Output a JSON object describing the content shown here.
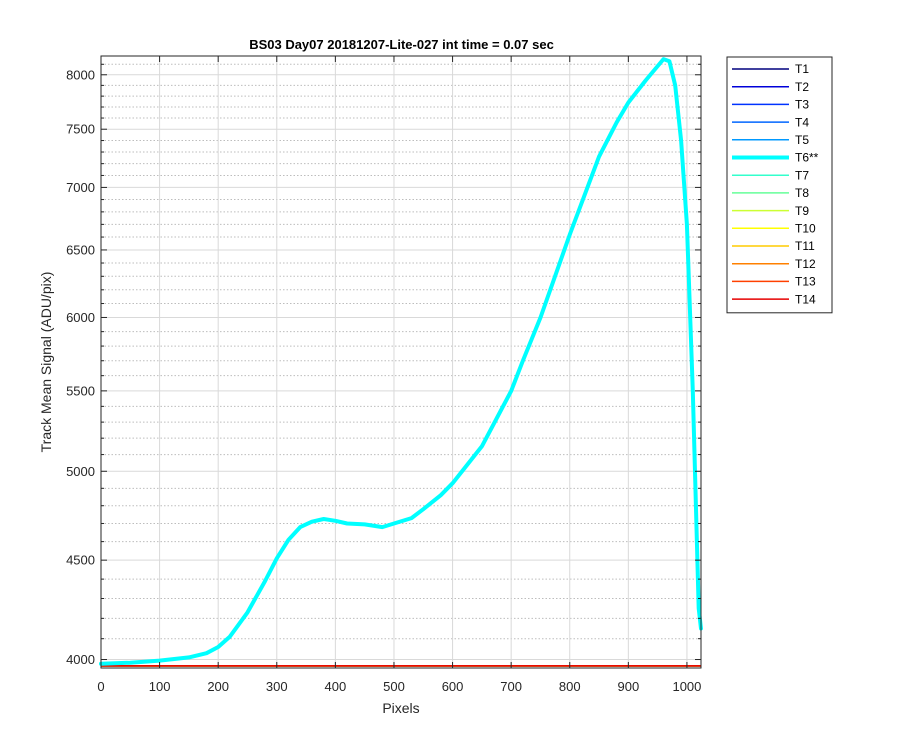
{
  "chart_data": {
    "type": "line",
    "title": "BS03 Day07 20181207-Lite-027 int time = 0.07 sec",
    "xlabel": "Pixels",
    "ylabel": "Track Mean Signal (ADU/pix)",
    "xlim": [
      0,
      1024
    ],
    "ylim": [
      3960,
      8180
    ],
    "y_scale": "log",
    "x_ticks": [
      0,
      100,
      200,
      300,
      400,
      500,
      600,
      700,
      800,
      900,
      1000
    ],
    "y_ticks": [
      4000,
      4500,
      5000,
      5500,
      6000,
      6500,
      7000,
      7500,
      8000
    ],
    "y_minor_ticks": [
      4100,
      4200,
      4300,
      4400,
      4600,
      4700,
      4800,
      4900,
      5100,
      5200,
      5300,
      5400,
      5600,
      5700,
      5800,
      5900,
      6100,
      6200,
      6300,
      6400,
      6600,
      6700,
      6800,
      6900,
      7100,
      7200,
      7300,
      7400,
      7600,
      7700,
      7800,
      7900,
      8100
    ],
    "grid": true,
    "legend_position": "outside-right",
    "series": [
      {
        "name": "T1",
        "color": "#00007f",
        "values": "flat"
      },
      {
        "name": "T2",
        "color": "#0000d9",
        "values": "flat"
      },
      {
        "name": "T3",
        "color": "#0033ff",
        "values": "flat"
      },
      {
        "name": "T4",
        "color": "#0066ff",
        "values": "flat"
      },
      {
        "name": "T5",
        "color": "#0099ff",
        "values": "flat"
      },
      {
        "name": "T6**",
        "color": "#00ffff",
        "highlight": true
      },
      {
        "name": "T7",
        "color": "#33ffcc",
        "values": "flat"
      },
      {
        "name": "T8",
        "color": "#66ff99",
        "values": "flat"
      },
      {
        "name": "T9",
        "color": "#ccff33",
        "values": "flat"
      },
      {
        "name": "T10",
        "color": "#ffff00",
        "values": "flat"
      },
      {
        "name": "T11",
        "color": "#ffcc00",
        "values": "flat"
      },
      {
        "name": "T12",
        "color": "#ff8000",
        "values": "flat"
      },
      {
        "name": "T13",
        "color": "#ff4000",
        "values": "flat"
      },
      {
        "name": "T14",
        "color": "#e60000",
        "values": "flat"
      }
    ],
    "flat_level": 3970,
    "highlight_series": {
      "name": "T6**",
      "x": [
        0,
        50,
        100,
        150,
        180,
        200,
        220,
        250,
        280,
        300,
        320,
        340,
        360,
        380,
        400,
        420,
        450,
        480,
        500,
        530,
        550,
        580,
        600,
        650,
        700,
        720,
        750,
        800,
        850,
        880,
        900,
        930,
        960,
        970,
        980,
        990,
        1000,
        1010,
        1020,
        1024
      ],
      "y": [
        3980,
        3985,
        3995,
        4010,
        4030,
        4060,
        4110,
        4230,
        4390,
        4510,
        4610,
        4680,
        4710,
        4725,
        4715,
        4700,
        4695,
        4680,
        4700,
        4730,
        4780,
        4860,
        4930,
        5150,
        5500,
        5700,
        6000,
        6620,
        7260,
        7560,
        7740,
        7950,
        8150,
        8130,
        7900,
        7400,
        6700,
        5500,
        4250,
        4150
      ]
    }
  }
}
